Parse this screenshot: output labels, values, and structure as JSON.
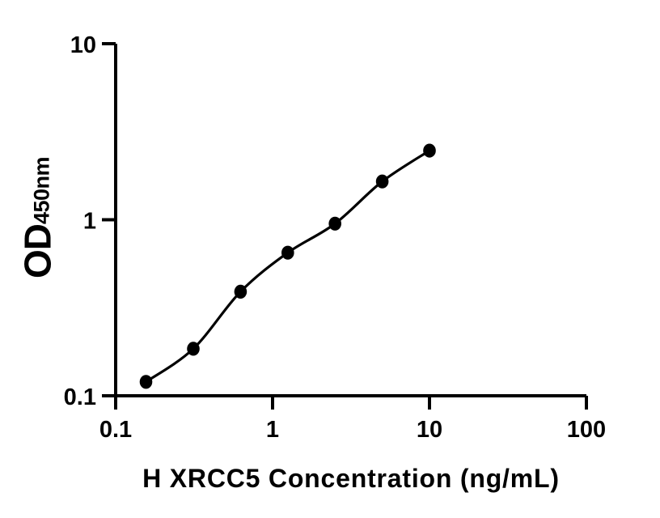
{
  "chart_data": {
    "type": "scatter",
    "subtype": "standard-curve-with-smooth-fit-line",
    "title": "",
    "xlabel": "H XRCC5 Concentration (ng/mL)",
    "ylabel": {
      "text": "OD",
      "subscript": "450nm"
    },
    "xscale": "log",
    "yscale": "log",
    "xlim": [
      0.1,
      100
    ],
    "ylim": [
      0.1,
      10
    ],
    "xticks": {
      "values": [
        0.1,
        1,
        10,
        100
      ],
      "labels": [
        "0.1",
        "1",
        "10",
        "100"
      ]
    },
    "yticks": {
      "values": [
        0.1,
        1,
        10
      ],
      "labels": [
        "0.1",
        "1",
        "10"
      ]
    },
    "grid": false,
    "legend": "none",
    "series": [
      {
        "marker": "filled-circle",
        "line": "smooth",
        "x": [
          0.156,
          0.3125,
          0.625,
          1.25,
          2.5,
          5,
          10
        ],
        "y": [
          0.12,
          0.185,
          0.39,
          0.65,
          0.95,
          1.65,
          2.47
        ]
      }
    ],
    "colors": {
      "foreground": "#000000",
      "background": "#ffffff"
    }
  }
}
